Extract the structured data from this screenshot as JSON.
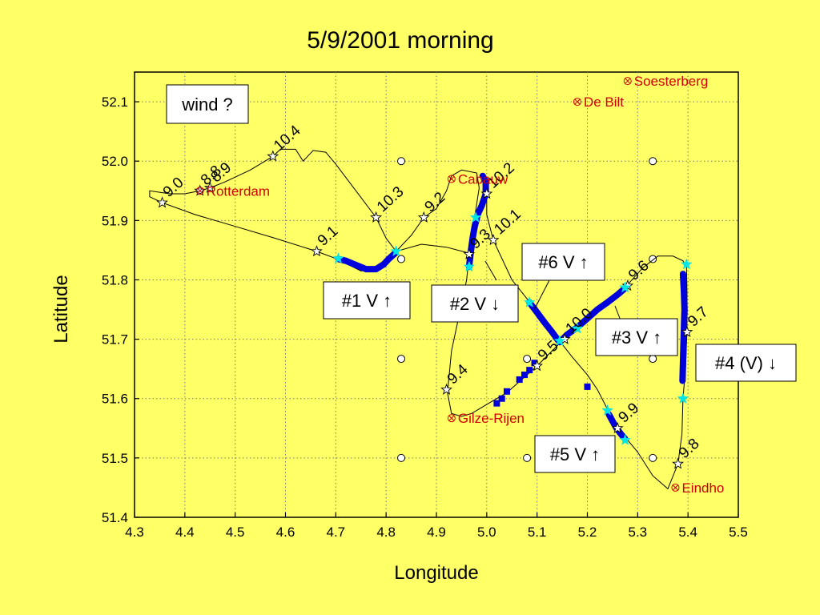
{
  "chart_data": {
    "type": "scatter",
    "title": "5/9/2001 morning",
    "xlabel": "Longitude",
    "ylabel": "Latitude",
    "xlim": [
      4.3,
      5.5
    ],
    "ylim": [
      51.4,
      52.15
    ],
    "xticks": [
      "4.3",
      "4.4",
      "4.5",
      "4.6",
      "4.7",
      "4.8",
      "4.9",
      "5.0",
      "5.1",
      "5.2",
      "5.3",
      "5.4",
      "5.5"
    ],
    "yticks": [
      "51.4",
      "51.5",
      "51.6",
      "51.7",
      "51.8",
      "51.9",
      "52.0",
      "52.1"
    ],
    "grid": true,
    "colors": {
      "background": "#ffff66",
      "track": "#000000",
      "segment": "#0000dd",
      "star": "#00e5e5",
      "city": "#d00000"
    },
    "cities": [
      {
        "name": "Soesterberg",
        "x": 5.28,
        "y": 52.135
      },
      {
        "name": "De Bilt",
        "x": 5.18,
        "y": 52.1
      },
      {
        "name": "Cabauw",
        "x": 4.93,
        "y": 51.97
      },
      {
        "name": "Rotterdam",
        "x": 4.43,
        "y": 51.95
      },
      {
        "name": "Gilze-Rijen",
        "x": 4.93,
        "y": 51.567
      },
      {
        "name": "Eindho",
        "x": 5.375,
        "y": 51.45
      }
    ],
    "waypoints": [
      {
        "label": "9.0",
        "x": 4.355,
        "y": 51.93
      },
      {
        "label": "8.8",
        "x": 4.43,
        "y": 51.95
      },
      {
        "label": "8.9",
        "x": 4.45,
        "y": 51.955
      },
      {
        "label": "10.4",
        "x": 4.575,
        "y": 52.008
      },
      {
        "label": "9.1",
        "x": 4.662,
        "y": 51.848
      },
      {
        "label": "10.3",
        "x": 4.78,
        "y": 51.905
      },
      {
        "label": "9.2",
        "x": 4.875,
        "y": 51.905
      },
      {
        "label": "10.2",
        "x": 5.0,
        "y": 51.945
      },
      {
        "label": "9.3",
        "x": 4.965,
        "y": 51.843
      },
      {
        "label": "10.1",
        "x": 5.013,
        "y": 51.867
      },
      {
        "label": "9.4",
        "x": 4.92,
        "y": 51.615
      },
      {
        "label": "9.5",
        "x": 5.1,
        "y": 51.655
      },
      {
        "label": "10.0",
        "x": 5.155,
        "y": 51.7
      },
      {
        "label": "9.6",
        "x": 5.28,
        "y": 51.79
      },
      {
        "label": "9.7",
        "x": 5.398,
        "y": 51.712
      },
      {
        "label": "9.9",
        "x": 5.26,
        "y": 51.55
      },
      {
        "label": "9.8",
        "x": 5.38,
        "y": 51.49
      }
    ],
    "grid_circles": [
      {
        "x": 4.83,
        "y": 52.0
      },
      {
        "x": 5.33,
        "y": 52.0
      },
      {
        "x": 4.83,
        "y": 51.835
      },
      {
        "x": 5.33,
        "y": 51.835
      },
      {
        "x": 4.83,
        "y": 51.667
      },
      {
        "x": 5.08,
        "y": 51.667
      },
      {
        "x": 5.33,
        "y": 51.667
      },
      {
        "x": 4.83,
        "y": 51.5
      },
      {
        "x": 5.08,
        "y": 51.5
      },
      {
        "x": 5.33,
        "y": 51.5
      }
    ],
    "track": [
      [
        5.395,
        51.825
      ],
      [
        5.39,
        51.832
      ],
      [
        5.37,
        51.84
      ],
      [
        5.34,
        51.84
      ],
      [
        5.31,
        51.82
      ],
      [
        5.28,
        51.792
      ],
      [
        5.24,
        51.76
      ],
      [
        5.2,
        51.73
      ],
      [
        5.18,
        51.718
      ],
      [
        5.155,
        51.703
      ],
      [
        5.145,
        51.693
      ],
      [
        5.12,
        51.672
      ],
      [
        5.1,
        51.655
      ],
      [
        5.08,
        51.64
      ],
      [
        5.04,
        51.61
      ],
      [
        5.0,
        51.59
      ],
      [
        4.97,
        51.575
      ],
      [
        4.95,
        51.57
      ],
      [
        4.93,
        51.575
      ],
      [
        4.922,
        51.61
      ],
      [
        4.93,
        51.68
      ],
      [
        4.945,
        51.74
      ],
      [
        4.96,
        51.8
      ],
      [
        4.965,
        51.84
      ],
      [
        4.975,
        51.9
      ],
      [
        4.985,
        51.955
      ],
      [
        4.98,
        51.98
      ],
      [
        4.95,
        51.985
      ],
      [
        4.93,
        51.975
      ],
      [
        4.92,
        51.95
      ],
      [
        4.9,
        51.92
      ],
      [
        4.875,
        51.905
      ],
      [
        4.85,
        51.875
      ],
      [
        4.82,
        51.848
      ],
      [
        4.8,
        51.87
      ],
      [
        4.78,
        51.905
      ],
      [
        4.74,
        51.95
      ],
      [
        4.7,
        51.995
      ],
      [
        4.68,
        52.015
      ],
      [
        4.655,
        52.018
      ],
      [
        4.635,
        52.0
      ],
      [
        4.62,
        52.02
      ],
      [
        4.59,
        52.02
      ],
      [
        4.575,
        52.008
      ],
      [
        4.53,
        51.985
      ],
      [
        4.48,
        51.965
      ],
      [
        4.45,
        51.955
      ],
      [
        4.43,
        51.95
      ],
      [
        4.4,
        51.945
      ],
      [
        4.37,
        51.945
      ],
      [
        4.33,
        51.95
      ],
      [
        4.33,
        51.94
      ],
      [
        4.355,
        51.93
      ],
      [
        4.42,
        51.91
      ],
      [
        4.5,
        51.89
      ],
      [
        4.58,
        51.87
      ],
      [
        4.662,
        51.848
      ],
      [
        4.7,
        51.836
      ],
      [
        4.75,
        51.815
      ],
      [
        4.78,
        51.818
      ],
      [
        4.82,
        51.848
      ],
      [
        4.87,
        51.86
      ],
      [
        4.92,
        51.855
      ],
      [
        4.965,
        51.845
      ],
      [
        4.985,
        51.9
      ],
      [
        4.995,
        51.94
      ],
      [
        5.0,
        51.945
      ],
      [
        5.0,
        51.91
      ],
      [
        5.013,
        51.867
      ],
      [
        5.05,
        51.8
      ],
      [
        5.085,
        51.763
      ],
      [
        5.12,
        51.73
      ],
      [
        5.145,
        51.697
      ],
      [
        5.17,
        51.67
      ],
      [
        5.2,
        51.64
      ],
      [
        5.22,
        51.615
      ],
      [
        5.24,
        51.582
      ],
      [
        5.26,
        51.55
      ],
      [
        5.28,
        51.53
      ],
      [
        5.3,
        51.51
      ],
      [
        5.33,
        51.47
      ],
      [
        5.36,
        51.448
      ],
      [
        5.38,
        51.49
      ],
      [
        5.388,
        51.54
      ],
      [
        5.39,
        51.6
      ],
      [
        5.395,
        51.65
      ],
      [
        5.398,
        51.712
      ],
      [
        5.398,
        51.78
      ],
      [
        5.397,
        51.825
      ]
    ],
    "segments": [
      {
        "name": "#1 V ↑",
        "points": [
          [
            4.705,
            51.835
          ],
          [
            4.72,
            51.832
          ],
          [
            4.74,
            51.825
          ],
          [
            4.76,
            51.818
          ],
          [
            4.78,
            51.818
          ],
          [
            4.795,
            51.826
          ],
          [
            4.805,
            51.835
          ],
          [
            4.818,
            51.845
          ]
        ]
      },
      {
        "name": "#2 V ↓",
        "points": [
          [
            4.965,
            51.822
          ],
          [
            4.968,
            51.845
          ],
          [
            4.972,
            51.87
          ],
          [
            4.976,
            51.89
          ],
          [
            4.982,
            51.91
          ],
          [
            4.99,
            51.925
          ],
          [
            4.998,
            51.945
          ],
          [
            4.998,
            51.965
          ],
          [
            4.992,
            51.975
          ]
        ]
      },
      {
        "name": "#6 V ↑",
        "points": [
          [
            5.085,
            51.762
          ],
          [
            5.1,
            51.745
          ],
          [
            5.115,
            51.728
          ],
          [
            5.13,
            51.712
          ],
          [
            5.142,
            51.698
          ]
        ]
      },
      {
        "name": "#3 V ↑",
        "points": [
          [
            5.145,
            51.695
          ],
          [
            5.16,
            51.708
          ],
          [
            5.18,
            51.72
          ],
          [
            5.2,
            51.735
          ],
          [
            5.22,
            51.75
          ],
          [
            5.24,
            51.762
          ],
          [
            5.26,
            51.775
          ],
          [
            5.275,
            51.786
          ]
        ]
      },
      {
        "name": "#4 (V) ↓",
        "points": [
          [
            5.39,
            51.81
          ],
          [
            5.392,
            51.78
          ],
          [
            5.393,
            51.75
          ],
          [
            5.392,
            51.72
          ],
          [
            5.391,
            51.69
          ],
          [
            5.39,
            51.66
          ],
          [
            5.389,
            51.63
          ]
        ]
      },
      {
        "name": "#5 V ↑",
        "points": [
          [
            5.243,
            51.573
          ],
          [
            5.25,
            51.562
          ],
          [
            5.258,
            51.55
          ],
          [
            5.267,
            51.54
          ],
          [
            5.275,
            51.532
          ]
        ]
      }
    ],
    "scatter_blue": [
      [
        5.095,
        51.66
      ],
      [
        5.085,
        51.648
      ],
      [
        5.075,
        51.64
      ],
      [
        5.065,
        51.632
      ],
      [
        5.04,
        51.612
      ],
      [
        5.03,
        51.6
      ],
      [
        5.02,
        51.592
      ],
      [
        5.2,
        51.62
      ]
    ],
    "stars_cyan": [
      [
        4.705,
        51.836
      ],
      [
        4.82,
        51.848
      ],
      [
        4.965,
        51.822
      ],
      [
        4.978,
        51.905
      ],
      [
        5.085,
        51.762
      ],
      [
        5.145,
        51.697
      ],
      [
        5.18,
        51.718
      ],
      [
        5.275,
        51.787
      ],
      [
        5.397,
        51.826
      ],
      [
        5.39,
        51.6
      ],
      [
        5.24,
        51.58
      ],
      [
        5.275,
        51.53
      ]
    ],
    "annotations": [
      {
        "text": "wind ?"
      },
      {
        "text": "#1 V ↑"
      },
      {
        "text": "#2 V ↓"
      },
      {
        "text": "#6 V ↑"
      },
      {
        "text": "#3 V ↑"
      },
      {
        "text": "#4 (V) ↓"
      },
      {
        "text": "#5 V ↑"
      }
    ]
  }
}
